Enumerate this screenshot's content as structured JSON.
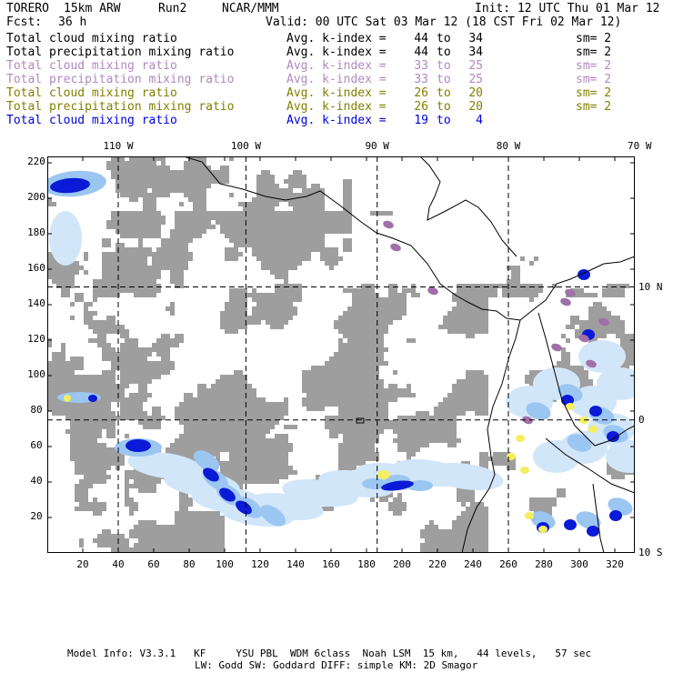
{
  "header": {
    "model": "TORERO",
    "resolution": "15km ARW",
    "run": "Run2",
    "org": "NCAR/MMM",
    "init": "Init: 12 UTC Thu 01 Mar 12",
    "fcst_label": "Fcst:",
    "fcst_value": "36 h",
    "valid": "Valid: 00 UTC Sat 03 Mar 12 (18 CST Fri 02 Mar 12)"
  },
  "legend": {
    "rows": [
      {
        "name": "Total cloud mixing ratio",
        "label": "Avg. k-index =",
        "from": "44",
        "to_word": "to",
        "to": "34",
        "sm": "sm= 2",
        "color": "#000000"
      },
      {
        "name": "Total precipitation mixing ratio",
        "label": "Avg. k-index =",
        "from": "44",
        "to_word": "to",
        "to": "34",
        "sm": "sm= 2",
        "color": "#000000"
      },
      {
        "name": "Total cloud mixing ratio",
        "label": "Avg. k-index =",
        "from": "33",
        "to_word": "to",
        "to": "25",
        "sm": "sm= 2",
        "color": "#b088c0"
      },
      {
        "name": "Total precipitation mixing ratio",
        "label": "Avg. k-index =",
        "from": "33",
        "to_word": "to",
        "to": "25",
        "sm": "sm= 2",
        "color": "#b088c0"
      },
      {
        "name": "Total cloud mixing ratio",
        "label": "Avg. k-index =",
        "from": "26",
        "to_word": "to",
        "to": "20",
        "sm": "sm= 2",
        "color": "#808000"
      },
      {
        "name": "Total precipitation mixing ratio",
        "label": "Avg. k-index =",
        "from": "26",
        "to_word": "to",
        "to": "20",
        "sm": "sm= 2",
        "color": "#808000"
      },
      {
        "name": "Total cloud mixing ratio",
        "label": "Avg. k-index =",
        "from": "19",
        "to_word": "to",
        "to": "4",
        "sm": "",
        "color": "#0000dd"
      }
    ]
  },
  "map": {
    "lon_labels": [
      {
        "text": "110 W",
        "i": 40
      },
      {
        "text": "100 W",
        "i": 112
      },
      {
        "text": "90 W",
        "i": 186
      },
      {
        "text": "80 W",
        "i": 260
      },
      {
        "text": "70 W",
        "i": 334
      }
    ],
    "lat_labels": [
      {
        "text": "10 N",
        "j": 150
      },
      {
        "text": "0",
        "j": 75
      },
      {
        "text": "10 S",
        "j": 0
      }
    ],
    "x_ticks": [
      20,
      40,
      60,
      80,
      100,
      120,
      140,
      160,
      180,
      200,
      220,
      240,
      260,
      280,
      300,
      320
    ],
    "y_ticks": [
      20,
      40,
      60,
      80,
      100,
      120,
      140,
      160,
      180,
      200,
      220
    ],
    "grid_i": [
      40,
      112,
      186,
      260
    ],
    "grid_j": [
      150,
      75
    ],
    "colors": {
      "cloud": "#9e9e9e",
      "blue_dark": "#0a1ad6",
      "blue_mid": "#3d5cf0",
      "blue_light": "#9cc6f2",
      "blue_pale": "#d2e6fa",
      "purple": "#a070a8",
      "yellow": "#f4ee60",
      "coast": "#000000",
      "grid": "#000000"
    }
  },
  "footer": {
    "line1": "Model Info: V3.3.1   KF     YSU PBL  WDM 6class  Noah LSM  15 km,   44 levels,   57 sec",
    "line2": "LW: Godd SW: Goddard DIFF: simple KM: 2D Smagor"
  }
}
